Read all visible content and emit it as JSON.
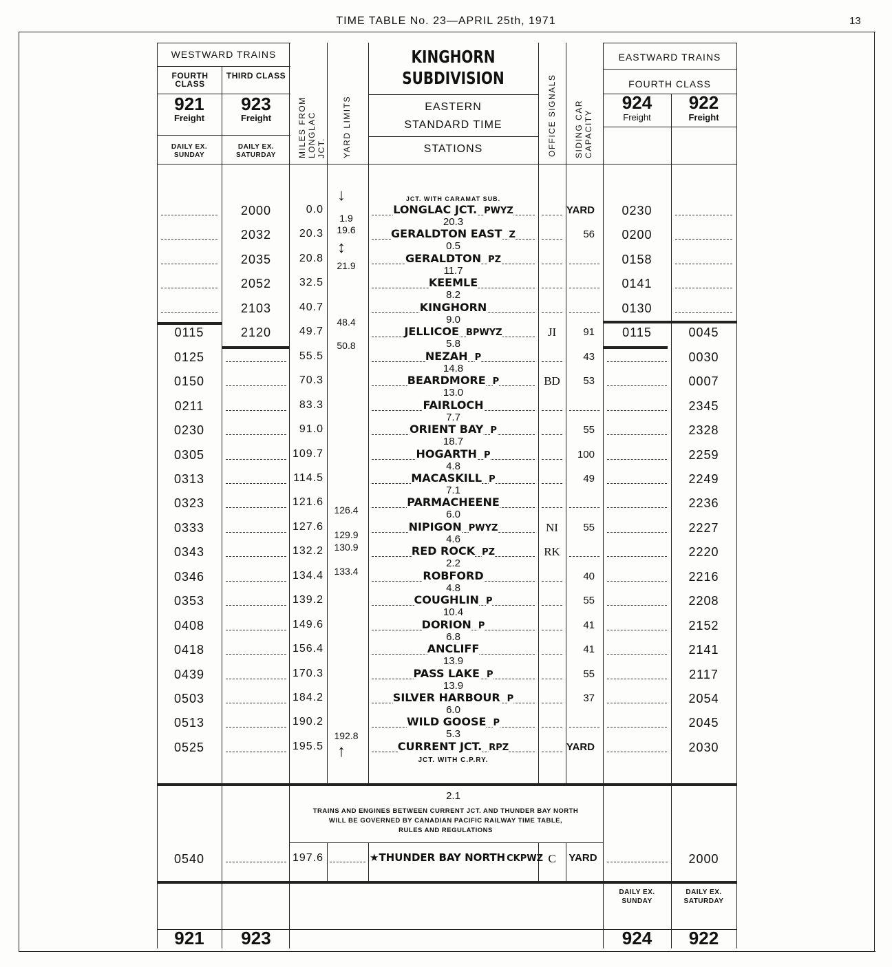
{
  "page_header": {
    "title": "TIME TABLE No. 23—APRIL 25th, 1971",
    "page_number": "13"
  },
  "header": {
    "westward": "WESTWARD TRAINS",
    "eastward": "EASTWARD TRAINS",
    "w_fourth": "FOURTH CLASS",
    "w_third": "THIRD CLASS",
    "e_fourth": "FOURTH CLASS",
    "t921": "921",
    "t923": "923",
    "t924": "924",
    "t922": "922",
    "freight": "Freight",
    "daily_ex_sunday": "DAILY EX. SUNDAY",
    "daily_ex_saturday": "DAILY EX. SATURDAY",
    "miles": "MILES FROM LONGLAC JCT.",
    "yard_limits": "YARD LIMITS",
    "title1": "KINGHORN",
    "title2": "SUBDIVISION",
    "time1": "EASTERN",
    "time2": "STANDARD TIME",
    "stations": "STATIONS",
    "office_signals": "OFFICE SIGNALS",
    "siding": "SIDING CAR CAPACITY"
  },
  "top_note": "JCT. WITH CARAMAT SUB.",
  "bottom_note": "JCT. WITH C.P.RY.",
  "rows": [
    {
      "w921": "",
      "w923": "2000",
      "miles": "0.0",
      "name": "LONGLAC JCT.",
      "sig": "PWYZ",
      "office": "",
      "siding": "YARD",
      "e924": "0230",
      "e922": "",
      "next": "20.3"
    },
    {
      "w921": "",
      "w923": "2032",
      "miles": "20.3",
      "name": "GERALDTON EAST",
      "sig": "Z",
      "office": "",
      "siding": "56",
      "e924": "0200",
      "e922": "",
      "next": "0.5"
    },
    {
      "w921": "",
      "w923": "2035",
      "miles": "20.8",
      "name": "GERALDTON",
      "sig": "PZ",
      "office": "",
      "siding": "",
      "e924": "0158",
      "e922": "",
      "next": "11.7"
    },
    {
      "w921": "",
      "w923": "2052",
      "miles": "32.5",
      "name": "KEEMLE",
      "sig": "",
      "office": "",
      "siding": "",
      "e924": "0141",
      "e922": "",
      "next": "8.2"
    },
    {
      "w921": "",
      "w923": "2103",
      "miles": "40.7",
      "name": "KINGHORN",
      "sig": "",
      "office": "",
      "siding": "",
      "e924": "0130",
      "e922": "",
      "next": "9.0"
    },
    {
      "w921": "0115",
      "w923": "2120",
      "miles": "49.7",
      "name": "JELLICOE",
      "sig": "BPWYZ",
      "office": "JI",
      "siding": "91",
      "e924": "0115",
      "e922": "0045",
      "next": "5.8"
    },
    {
      "w921": "0125",
      "w923": "",
      "miles": "55.5",
      "name": "NEZAH",
      "sig": "P",
      "office": "",
      "siding": "43",
      "e924": "",
      "e922": "0030",
      "next": "14.8"
    },
    {
      "w921": "0150",
      "w923": "",
      "miles": "70.3",
      "name": "BEARDMORE",
      "sig": "P",
      "office": "BD",
      "siding": "53",
      "e924": "",
      "e922": "0007",
      "next": "13.0"
    },
    {
      "w921": "0211",
      "w923": "",
      "miles": "83.3",
      "name": "FAIRLOCH",
      "sig": "",
      "office": "",
      "siding": "",
      "e924": "",
      "e922": "2345",
      "next": "7.7"
    },
    {
      "w921": "0230",
      "w923": "",
      "miles": "91.0",
      "name": "ORIENT BAY",
      "sig": "P",
      "office": "",
      "siding": "55",
      "e924": "",
      "e922": "2328",
      "next": "18.7"
    },
    {
      "w921": "0305",
      "w923": "",
      "miles": "109.7",
      "name": "HOGARTH",
      "sig": "P",
      "office": "",
      "siding": "100",
      "e924": "",
      "e922": "2259",
      "next": "4.8"
    },
    {
      "w921": "0313",
      "w923": "",
      "miles": "114.5",
      "name": "MACASKILL",
      "sig": "P",
      "office": "",
      "siding": "49",
      "e924": "",
      "e922": "2249",
      "next": "7.1"
    },
    {
      "w921": "0323",
      "w923": "",
      "miles": "121.6",
      "name": "PARMACHEENE",
      "sig": "",
      "office": "",
      "siding": "",
      "e924": "",
      "e922": "2236",
      "next": "6.0"
    },
    {
      "w921": "0333",
      "w923": "",
      "miles": "127.6",
      "name": "NIPIGON",
      "sig": "PWYZ",
      "office": "NI",
      "siding": "55",
      "e924": "",
      "e922": "2227",
      "next": "4.6"
    },
    {
      "w921": "0343",
      "w923": "",
      "miles": "132.2",
      "name": "RED ROCK",
      "sig": "PZ",
      "office": "RK",
      "siding": "",
      "e924": "",
      "e922": "2220",
      "next": "2.2"
    },
    {
      "w921": "0346",
      "w923": "",
      "miles": "134.4",
      "name": "ROBFORD",
      "sig": "",
      "office": "",
      "siding": "40",
      "e924": "",
      "e922": "2216",
      "next": "4.8"
    },
    {
      "w921": "0353",
      "w923": "",
      "miles": "139.2",
      "name": "COUGHLIN",
      "sig": "P",
      "office": "",
      "siding": "55",
      "e924": "",
      "e922": "2208",
      "next": "10.4"
    },
    {
      "w921": "0408",
      "w923": "",
      "miles": "149.6",
      "name": "DORION",
      "sig": "P",
      "office": "",
      "siding": "41",
      "e924": "",
      "e922": "2152",
      "next": "6.8"
    },
    {
      "w921": "0418",
      "w923": "",
      "miles": "156.4",
      "name": "ANCLIFF",
      "sig": "",
      "office": "",
      "siding": "41",
      "e924": "",
      "e922": "2141",
      "next": "13.9"
    },
    {
      "w921": "0439",
      "w923": "",
      "miles": "170.3",
      "name": "PASS LAKE",
      "sig": "P",
      "office": "",
      "siding": "55",
      "e924": "",
      "e922": "2117",
      "next": "13.9"
    },
    {
      "w921": "0503",
      "w923": "",
      "miles": "184.2",
      "name": "SILVER HARBOUR",
      "sig": "P",
      "office": "",
      "siding": "37",
      "e924": "",
      "e922": "2054",
      "next": "6.0"
    },
    {
      "w921": "0513",
      "w923": "",
      "miles": "190.2",
      "name": "WILD GOOSE",
      "sig": "P",
      "office": "",
      "siding": "",
      "e924": "",
      "e922": "2045",
      "next": "5.3"
    },
    {
      "w921": "0525",
      "w923": "",
      "miles": "195.5",
      "name": "CURRENT JCT.",
      "sig": "RPZ",
      "office": "",
      "siding": "YARD",
      "e924": "",
      "e922": "2030",
      "next": ""
    }
  ],
  "yard_limits": [
    "1.9",
    "19.6",
    "21.9",
    "48.4",
    "50.8",
    "126.4",
    "129.9",
    "130.9",
    "133.4",
    "192.8"
  ],
  "gap_distance": "2.1",
  "notice": [
    "TRAINS AND ENGINES BETWEEN CURRENT JCT. AND THUNDER BAY NORTH",
    "WILL BE GOVERNED BY CANADIAN PACIFIC RAILWAY TIME TABLE,",
    "RULES AND REGULATIONS"
  ],
  "terminal": {
    "w921": "0540",
    "miles": "197.6",
    "star": "★",
    "name": "THUNDER BAY NORTH",
    "sig": "CKPWZ",
    "office": "C",
    "siding": "YARD",
    "e922": "2000"
  }
}
